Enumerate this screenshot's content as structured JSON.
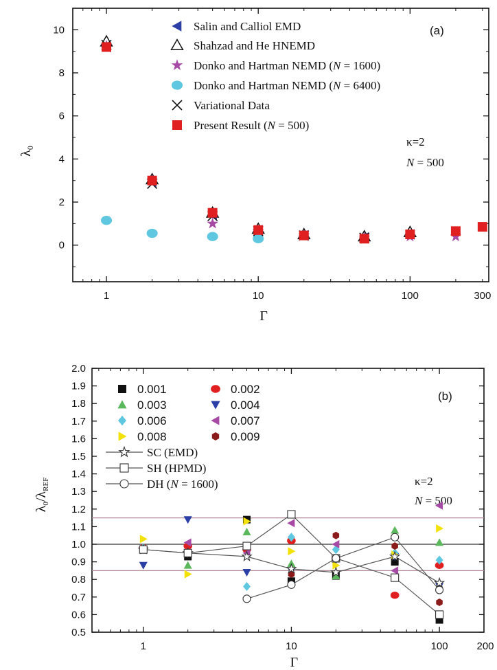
{
  "chart_data": [
    {
      "type": "scatter",
      "panel_label": "(a)",
      "xlabel": "Γ",
      "ylabel": "λ0",
      "xscale": "log",
      "xlim": [
        0.6,
        330
      ],
      "ylim": [
        -1.7,
        11
      ],
      "xticks": [
        1,
        10,
        100,
        300
      ],
      "yticks": [
        0,
        2,
        4,
        6,
        8,
        10
      ],
      "annotation": [
        "κ=2",
        "N = 500"
      ],
      "legend_position": "top-right",
      "series": [
        {
          "name": "Salin and Calliol EMD",
          "marker": "tri-left",
          "color": "#2b3fa6",
          "x": [
            1,
            2,
            5,
            10,
            20,
            50,
            100
          ],
          "y": [
            9.2,
            2.95,
            1.4,
            0.7,
            0.45,
            0.35,
            0.5
          ]
        },
        {
          "name": "Shahzad and He HNEMD",
          "marker": "tri-up-open",
          "color": "#111111",
          "x": [
            1,
            2,
            5,
            10,
            20,
            50,
            100
          ],
          "y": [
            9.45,
            3.05,
            1.5,
            0.75,
            0.5,
            0.4,
            0.6
          ]
        },
        {
          "name": "Donko and Hartman NEMD (N = 1600)",
          "marker": "star",
          "color": "#a64aa6",
          "x": [
            1,
            2,
            5,
            10,
            20,
            50,
            100,
            200
          ],
          "y": [
            9.25,
            3.0,
            1.0,
            0.65,
            0.45,
            0.35,
            0.4,
            0.4
          ]
        },
        {
          "name": "Donko and Hartman NEMD (N = 6400)",
          "marker": "circle",
          "color": "#5fc8e0",
          "x": [
            1,
            2,
            5,
            10
          ],
          "y": [
            1.15,
            0.55,
            0.4,
            0.3
          ]
        },
        {
          "name": "Variational Data",
          "marker": "cross",
          "color": "#111111",
          "x": [
            1,
            2,
            5,
            10,
            20,
            50
          ],
          "y": [
            9.3,
            2.85,
            1.35,
            0.65,
            0.45,
            0.35
          ]
        },
        {
          "name": "Present Result (N = 500)",
          "marker": "square",
          "color": "#e02020",
          "x": [
            1,
            2,
            5,
            10,
            20,
            50,
            100,
            200,
            300
          ],
          "y": [
            9.2,
            3.0,
            1.5,
            0.7,
            0.45,
            0.3,
            0.5,
            0.65,
            0.85
          ]
        }
      ]
    },
    {
      "type": "scatter",
      "panel_label": "(b)",
      "xlabel": "Γ",
      "ylabel": "λ0/λREF",
      "xscale": "log",
      "xlim": [
        0.45,
        200
      ],
      "ylim": [
        0.5,
        2.0
      ],
      "xticks": [
        1,
        10,
        100,
        200
      ],
      "yticks": [
        0.5,
        0.6,
        0.7,
        0.8,
        0.9,
        1.0,
        1.1,
        1.2,
        1.3,
        1.4,
        1.5,
        1.6,
        1.7,
        1.8,
        1.9,
        2.0
      ],
      "hlines": [
        0.85,
        1.0,
        1.15
      ],
      "annotation": [
        "κ=2",
        "N = 500"
      ],
      "legend_position": "top-left",
      "series": [
        {
          "name": "0.001",
          "marker": "square",
          "color": "#111111",
          "x": [
            1,
            2,
            5,
            10,
            20,
            50,
            100
          ],
          "y": [
            0.97,
            0.93,
            1.14,
            0.79,
            0.82,
            0.9,
            0.57
          ]
        },
        {
          "name": "0.002",
          "marker": "circle",
          "color": "#e02020",
          "x": [
            1,
            2,
            5,
            10,
            20,
            50,
            100
          ],
          "y": [
            0.98,
            0.99,
            0.97,
            1.02,
            0.92,
            0.71,
            0.88
          ]
        },
        {
          "name": "0.003",
          "marker": "tri-up",
          "color": "#5cb85c",
          "x": [
            1,
            2,
            5,
            10,
            20,
            50,
            100
          ],
          "y": [
            0.97,
            0.88,
            1.07,
            0.89,
            0.82,
            1.08,
            1.01
          ]
        },
        {
          "name": "0.004",
          "marker": "tri-down",
          "color": "#2b3fa6",
          "x": [
            1,
            2,
            5,
            10,
            20,
            50,
            100
          ],
          "y": [
            0.88,
            1.14,
            0.84,
            0.85,
            0.91,
            0.93,
            0.76
          ]
        },
        {
          "name": "0.006",
          "marker": "diamond",
          "color": "#5fc8e0",
          "x": [
            1,
            2,
            5,
            10,
            20,
            50,
            100
          ],
          "y": [
            0.98,
            0.95,
            0.76,
            1.04,
            0.97,
            0.95,
            0.91
          ]
        },
        {
          "name": "0.007",
          "marker": "tri-left",
          "color": "#a64aa6",
          "x": [
            1,
            2,
            5,
            10,
            20,
            50,
            100
          ],
          "y": [
            0.97,
            1.01,
            0.95,
            1.12,
            1.0,
            0.85,
            1.22
          ]
        },
        {
          "name": "0.008",
          "marker": "tri-right",
          "color": "#f2e20a",
          "x": [
            1,
            2,
            5,
            10,
            20,
            50,
            100
          ],
          "y": [
            1.03,
            0.83,
            1.13,
            0.96,
            0.88,
            0.94,
            1.09
          ]
        },
        {
          "name": "0.009",
          "marker": "hexagon",
          "color": "#8b1a1a",
          "x": [
            10,
            20,
            50,
            100
          ],
          "y": [
            0.83,
            1.05,
            0.99,
            0.67
          ]
        },
        {
          "name": "SC (EMD)",
          "marker": "star-open-line",
          "color": "#555555",
          "x": [
            1,
            2,
            5,
            10,
            20,
            50,
            100
          ],
          "y": [
            0.97,
            0.95,
            0.93,
            0.86,
            0.84,
            0.93,
            0.78
          ]
        },
        {
          "name": "SH (HPMD)",
          "marker": "square-open-line",
          "color": "#555555",
          "x": [
            1,
            2,
            5,
            10,
            20,
            50,
            100
          ],
          "y": [
            0.97,
            0.95,
            0.99,
            1.17,
            0.92,
            0.81,
            0.6
          ]
        },
        {
          "name": "DH (N = 1600)",
          "marker": "circle-open-line",
          "color": "#555555",
          "x": [
            5,
            10,
            20,
            50,
            100
          ],
          "y": [
            0.69,
            0.77,
            0.92,
            1.04,
            0.74
          ]
        }
      ]
    }
  ],
  "legend_text": {
    "a": [
      {
        "pre": "Salin and Calliol EMD",
        "it": "",
        "post": ""
      },
      {
        "pre": "Shahzad and He HNEMD",
        "it": "",
        "post": ""
      },
      {
        "pre": "Donko and Hartman NEMD (",
        "it": "N",
        "post": " = 1600)"
      },
      {
        "pre": "Donko and Hartman NEMD (",
        "it": "N",
        "post": " = 6400)"
      },
      {
        "pre": "Variational Data",
        "it": "",
        "post": ""
      },
      {
        "pre": "Present Result (",
        "it": "N",
        "post": " = 500)"
      }
    ],
    "b_lines": [
      {
        "pre": "SC (EMD)",
        "it": "",
        "post": ""
      },
      {
        "pre": "SH (HPMD)",
        "it": "",
        "post": ""
      },
      {
        "pre": "DH (",
        "it": "N",
        "post": " = 1600)"
      }
    ]
  }
}
